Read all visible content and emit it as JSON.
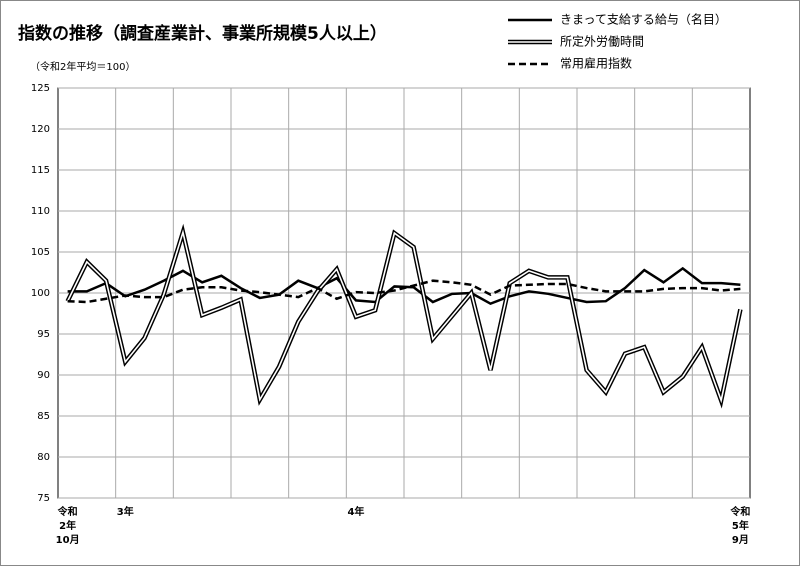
{
  "chart_data": {
    "type": "line",
    "title": "指数の推移（調査産業計、事業所規模5人以上）",
    "subtitle": "（令和2年平均＝100）",
    "categories": [
      "令和\n2年\n10月",
      null,
      null,
      "3年",
      null,
      null,
      null,
      null,
      null,
      null,
      null,
      null,
      null,
      null,
      null,
      "4年",
      null,
      null,
      null,
      null,
      null,
      null,
      null,
      null,
      null,
      null,
      null,
      null,
      null,
      null,
      null,
      null,
      null,
      null,
      null,
      "令和\n5年\n9月"
    ],
    "series": [
      {
        "name": "きまって支給する給与（名目）",
        "color": "#000000",
        "style": "solid",
        "values": [
          100.2,
          100.2,
          101.2,
          99.6,
          100.4,
          101.5,
          102.7,
          101.3,
          102.1,
          100.6,
          99.4,
          99.8,
          101.5,
          100.6,
          101.8,
          99.1,
          98.9,
          100.8,
          100.7,
          98.9,
          99.9,
          100.0,
          98.7,
          99.6,
          100.2,
          99.9,
          99.4,
          98.9,
          99.0,
          100.6,
          102.8,
          101.3,
          103.0,
          101.2,
          101.2,
          101.0
        ]
      },
      {
        "name": "所定外労働時間",
        "color": "#000000",
        "style": "double",
        "values": [
          99.0,
          103.8,
          101.5,
          91.6,
          94.5,
          99.8,
          107.4,
          97.3,
          98.2,
          99.2,
          87.0,
          91.0,
          96.5,
          100.2,
          102.9,
          97.1,
          97.9,
          107.3,
          105.6,
          94.4,
          97.2,
          100.0,
          90.6,
          101.2,
          102.7,
          101.9,
          101.9,
          90.6,
          87.9,
          92.6,
          93.4,
          87.9,
          89.8,
          93.4,
          86.9,
          98.0
        ]
      },
      {
        "name": "常用雇用指数",
        "color": "#000000",
        "style": "dashed",
        "values": [
          99.0,
          98.9,
          99.3,
          99.7,
          99.5,
          99.5,
          100.4,
          100.7,
          100.7,
          100.3,
          100.1,
          99.8,
          99.5,
          100.6,
          99.3,
          100.1,
          100.0,
          100.3,
          100.9,
          101.5,
          101.3,
          101.0,
          99.8,
          100.9,
          101.0,
          101.1,
          101.1,
          100.6,
          100.2,
          100.2,
          100.2,
          100.5,
          100.6,
          100.6,
          100.3,
          100.5
        ]
      }
    ],
    "ylim": [
      75,
      125
    ],
    "yticks": [
      75,
      80,
      85,
      90,
      95,
      100,
      105,
      110,
      115,
      120,
      125
    ],
    "grid": true
  }
}
